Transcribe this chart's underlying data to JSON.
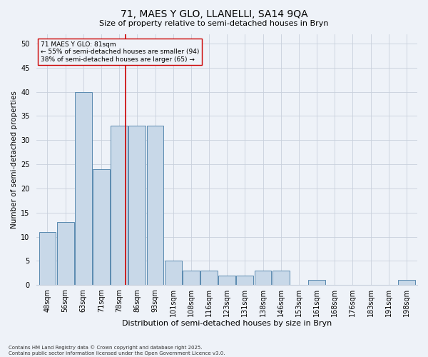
{
  "title": "71, MAES Y GLO, LLANELLI, SA14 9QA",
  "subtitle": "Size of property relative to semi-detached houses in Bryn",
  "xlabel": "Distribution of semi-detached houses by size in Bryn",
  "ylabel": "Number of semi-detached properties",
  "categories": [
    "48sqm",
    "56sqm",
    "63sqm",
    "71sqm",
    "78sqm",
    "86sqm",
    "93sqm",
    "101sqm",
    "108sqm",
    "116sqm",
    "123sqm",
    "131sqm",
    "138sqm",
    "146sqm",
    "153sqm",
    "161sqm",
    "168sqm",
    "176sqm",
    "183sqm",
    "191sqm",
    "198sqm"
  ],
  "values": [
    11,
    13,
    40,
    24,
    33,
    33,
    33,
    5,
    3,
    3,
    2,
    2,
    3,
    3,
    0,
    1,
    0,
    0,
    0,
    0,
    1
  ],
  "bar_color": "#c8d8e8",
  "bar_edge_color": "#5a8ab0",
  "ref_line_index": 4.35,
  "ref_line_color": "#cc0000",
  "annotation_text": "71 MAES Y GLO: 81sqm\n← 55% of semi-detached houses are smaller (94)\n38% of semi-detached houses are larger (65) →",
  "ylim": [
    0,
    52
  ],
  "yticks": [
    0,
    5,
    10,
    15,
    20,
    25,
    30,
    35,
    40,
    45,
    50
  ],
  "grid_color": "#c8d0dc",
  "background_color": "#eef2f8",
  "footer": "Contains HM Land Registry data © Crown copyright and database right 2025.\nContains public sector information licensed under the Open Government Licence v3.0.",
  "title_fontsize": 10,
  "subtitle_fontsize": 8,
  "xlabel_fontsize": 8,
  "ylabel_fontsize": 7.5,
  "tick_fontsize": 7,
  "annotation_fontsize": 6.5,
  "footer_fontsize": 5
}
